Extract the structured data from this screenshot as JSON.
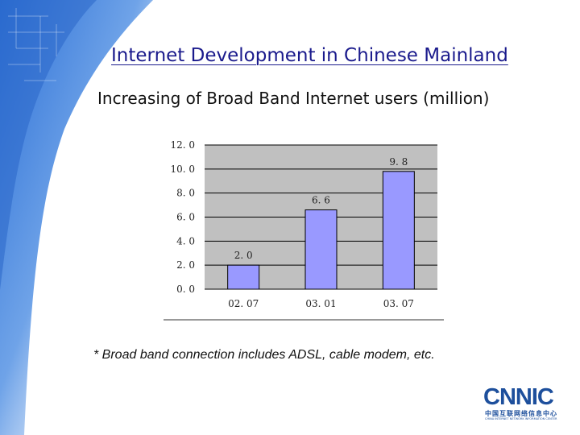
{
  "slide": {
    "title": "Internet Development in Chinese Mainland",
    "footnote": "* Broad band connection includes ADSL, cable modem, etc."
  },
  "logo": {
    "word": "CNNIC",
    "chinese": "中国互联网络信息中心",
    "english": "CHINA INTERNET NETWORK INFORMATION CENTER"
  },
  "colors": {
    "title": "#1a1a8c",
    "bar": "#9999ff",
    "plot_background": "#c0c0c0",
    "logo": "#1d4f9c"
  },
  "chart_data": {
    "type": "bar",
    "title": "Increasing of Broad Band Internet users (million)",
    "categories": [
      "02. 07",
      "03. 01",
      "03. 07"
    ],
    "values": [
      2.0,
      6.6,
      9.8
    ],
    "value_labels": [
      "2. 0",
      "6. 6",
      "9. 8"
    ],
    "ylim": [
      0,
      12
    ],
    "y_ticks": [
      0,
      2,
      4,
      6,
      8,
      10,
      12
    ],
    "y_tick_labels": [
      "0. 0",
      "2. 0",
      "4. 0",
      "6. 0",
      "8. 0",
      "10. 0",
      "12. 0"
    ],
    "grid": true,
    "legend": "none"
  }
}
